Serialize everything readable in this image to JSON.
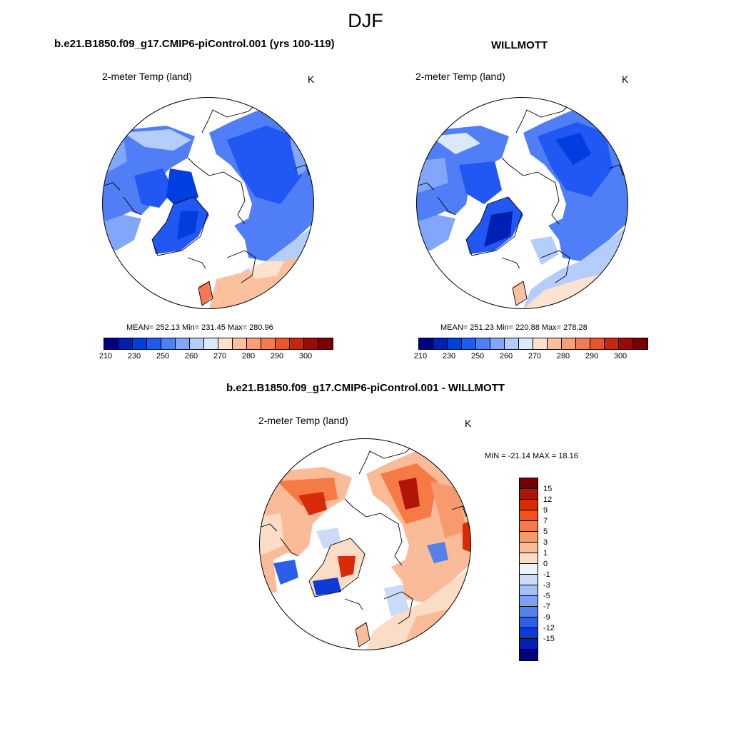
{
  "figure": {
    "title": "DJF",
    "panels": [
      {
        "id": "model",
        "case_title": "b.e21.B1850.f09_g17.CMIP6-piControl.001 (yrs 100-119)",
        "variable": "2-meter Temp (land)",
        "units": "K",
        "stats": "MEAN= 252.13  Min= 231.45  Max= 280.96"
      },
      {
        "id": "obs",
        "case_title": "WILLMOTT",
        "variable": "2-meter Temp (land)",
        "units": "K",
        "stats": "MEAN= 251.23  Min= 220.88  Max= 278.28"
      },
      {
        "id": "diff",
        "case_title": "b.e21.B1850.f09_g17.CMIP6-piControl.001 - WILLMOTT",
        "variable": "2-meter Temp (land)",
        "units": "K",
        "stats": "MIN = -21.14 MAX =  18.16"
      }
    ]
  },
  "colorbar_abs": {
    "colors": [
      "#00007f",
      "#001fb3",
      "#003ee0",
      "#2157f2",
      "#4f7ef7",
      "#82a6f9",
      "#b5cdfb",
      "#dbe8fd",
      "#fde2cf",
      "#fbc09e",
      "#f89e78",
      "#f47a55",
      "#ea5230",
      "#c82610",
      "#9b0a05",
      "#7a0000"
    ],
    "tick_labels": [
      "210",
      "230",
      "250",
      "260",
      "270",
      "280",
      "290",
      "300"
    ]
  },
  "colorbar_diff": {
    "colors": [
      "#7a0000",
      "#b01506",
      "#d92a0a",
      "#f4511c",
      "#f57a45",
      "#f79b6e",
      "#f9bb98",
      "#fbdcc5",
      "#eef3fb",
      "#c9dbf8",
      "#a3c0f4",
      "#7da2f0",
      "#5581ec",
      "#2c5fe8",
      "#0e3ad6",
      "#0520b0",
      "#00007f"
    ],
    "tick_labels": [
      "15",
      "12",
      "9",
      "7",
      "5",
      "3",
      "1",
      "0",
      "-1",
      "-3",
      "-5",
      "-7",
      "-9",
      "-12",
      "-15"
    ]
  }
}
